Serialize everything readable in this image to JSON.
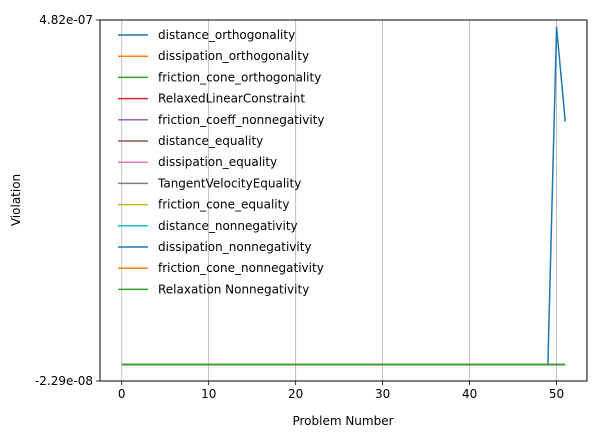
{
  "chart_data": {
    "type": "line",
    "xlabel": "Problem Number",
    "ylabel": "Violation",
    "xlim": [
      -2.5,
      53.5
    ],
    "ylim": [
      -2.29e-08,
      4.82e-07
    ],
    "xticks": [
      0,
      10,
      20,
      30,
      40,
      50
    ],
    "xtick_labels": [
      "0",
      "10",
      "20",
      "30",
      "40",
      "50"
    ],
    "yticks": [
      -2.29e-08,
      4.82e-07
    ],
    "ytick_labels": [
      "-2.29e-08",
      "4.82e-07"
    ],
    "grid": "x",
    "legend_loc": "upper-left",
    "series": [
      {
        "name": "distance_orthogonality",
        "color": "#1f77b4",
        "x": [
          0,
          49,
          50,
          51
        ],
        "y": [
          0,
          0,
          4.72e-07,
          3.4e-07
        ]
      },
      {
        "name": "dissipation_orthogonality",
        "color": "#ff7f0e",
        "x": [
          0,
          51
        ],
        "y": [
          0,
          0
        ]
      },
      {
        "name": "friction_cone_orthogonality",
        "color": "#2ca02c",
        "x": [
          0,
          51
        ],
        "y": [
          0,
          0
        ]
      },
      {
        "name": "RelaxedLinearConstraint",
        "color": "#d62728",
        "x": [
          0,
          51
        ],
        "y": [
          0,
          0
        ]
      },
      {
        "name": "friction_coeff_nonnegativity",
        "color": "#9467bd",
        "x": [
          0,
          51
        ],
        "y": [
          0,
          0
        ]
      },
      {
        "name": "distance_equality",
        "color": "#8c564b",
        "x": [
          0,
          51
        ],
        "y": [
          0,
          0
        ]
      },
      {
        "name": "dissipation_equality",
        "color": "#e377c2",
        "x": [
          0,
          51
        ],
        "y": [
          0,
          0
        ]
      },
      {
        "name": "TangentVelocityEquality",
        "color": "#7f7f7f",
        "x": [
          0,
          51
        ],
        "y": [
          0,
          0
        ]
      },
      {
        "name": "friction_cone_equality",
        "color": "#bcbd22",
        "x": [
          0,
          51
        ],
        "y": [
          0,
          0
        ]
      },
      {
        "name": "distance_nonnegativity",
        "color": "#17becf",
        "x": [
          0,
          51
        ],
        "y": [
          0,
          0
        ]
      },
      {
        "name": "dissipation_nonnegativity",
        "color": "#1f77b4",
        "x": [
          0,
          51
        ],
        "y": [
          0,
          0
        ]
      },
      {
        "name": "friction_cone_nonnegativity",
        "color": "#ff7f0e",
        "x": [
          0,
          51
        ],
        "y": [
          0,
          0
        ]
      },
      {
        "name": "Relaxation Nonnegativity",
        "color": "#2ca02c",
        "x": [
          0,
          51
        ],
        "y": [
          0,
          0
        ]
      }
    ]
  }
}
